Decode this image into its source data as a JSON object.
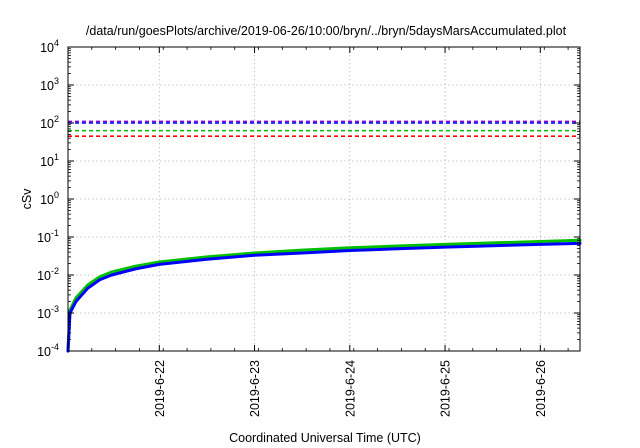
{
  "chart_data": {
    "type": "line",
    "title": "/data/run/goesPlots/archive/2019-06-26/10:00/bryn/../bryn/5daysMarsAccumulated.plot",
    "xlabel": "Coordinated Universal Time (UTC)",
    "ylabel": "cSv",
    "yscale": "log",
    "ylim": [
      0.0001,
      10000
    ],
    "xlim": [
      "2019-06-21 01:00",
      "2019-06-26 10:00"
    ],
    "grid": true,
    "x_ticks": [
      "2019-6-22",
      "2019-6-23",
      "2019-6-24",
      "2019-6-25",
      "2019-6-26"
    ],
    "y_ticks": [
      {
        "value": 0.0001,
        "base": "10",
        "exp": "-4"
      },
      {
        "value": 0.001,
        "base": "10",
        "exp": "-3"
      },
      {
        "value": 0.01,
        "base": "10",
        "exp": "-2"
      },
      {
        "value": 0.1,
        "base": "10",
        "exp": "-1"
      },
      {
        "value": 1,
        "base": "10",
        "exp": "0"
      },
      {
        "value": 10,
        "base": "10",
        "exp": "1"
      },
      {
        "value": 100,
        "base": "10",
        "exp": "2"
      },
      {
        "value": 1000,
        "base": "10",
        "exp": "3"
      },
      {
        "value": 10000,
        "base": "10",
        "exp": "4"
      }
    ],
    "thresholds": [
      {
        "value": 110,
        "color": "#9400d3",
        "style": "dashed"
      },
      {
        "value": 100,
        "color": "#0000ff",
        "style": "dashed"
      },
      {
        "value": 63,
        "color": "#00c000",
        "style": "dashed"
      },
      {
        "value": 45,
        "color": "#ff0000",
        "style": "dashed"
      }
    ],
    "series": [
      {
        "color": "#00c000",
        "x": [
          "2019-06-21 01:00",
          "2019-06-21 01:30",
          "2019-06-21 03:00",
          "2019-06-21 06:00",
          "2019-06-21 09:00",
          "2019-06-21 12:00",
          "2019-06-21 18:00",
          "2019-06-22 00:00",
          "2019-06-22 12:00",
          "2019-06-23 00:00",
          "2019-06-23 12:00",
          "2019-06-24 00:00",
          "2019-06-24 12:00",
          "2019-06-25 00:00",
          "2019-06-25 12:00",
          "2019-06-26 00:00",
          "2019-06-26 10:00"
        ],
        "y": [
          0.0001,
          0.0012,
          0.0025,
          0.0055,
          0.009,
          0.012,
          0.017,
          0.022,
          0.03,
          0.038,
          0.045,
          0.052,
          0.058,
          0.064,
          0.07,
          0.076,
          0.082
        ]
      },
      {
        "color": "#0000ff",
        "x": [
          "2019-06-21 01:00",
          "2019-06-21 01:30",
          "2019-06-21 03:00",
          "2019-06-21 06:00",
          "2019-06-21 09:00",
          "2019-06-21 12:00",
          "2019-06-21 18:00",
          "2019-06-22 00:00",
          "2019-06-22 12:00",
          "2019-06-23 00:00",
          "2019-06-23 12:00",
          "2019-06-24 00:00",
          "2019-06-24 12:00",
          "2019-06-25 00:00",
          "2019-06-25 12:00",
          "2019-06-26 00:00",
          "2019-06-26 10:00"
        ],
        "y": [
          0.0001,
          0.001,
          0.002,
          0.0045,
          0.0075,
          0.01,
          0.0145,
          0.019,
          0.026,
          0.033,
          0.038,
          0.044,
          0.049,
          0.054,
          0.059,
          0.064,
          0.068
        ]
      }
    ]
  }
}
